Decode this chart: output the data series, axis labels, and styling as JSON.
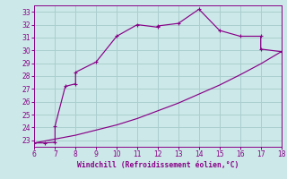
{
  "xlabel": "Windchill (Refroidissement éolien,°C)",
  "xlim": [
    6,
    18
  ],
  "ylim": [
    22.5,
    33.5
  ],
  "xticks": [
    6,
    7,
    8,
    9,
    10,
    11,
    12,
    13,
    14,
    15,
    16,
    17,
    18
  ],
  "yticks": [
    23,
    24,
    25,
    26,
    27,
    28,
    29,
    30,
    31,
    32,
    33
  ],
  "bg_color": "#cce8e8",
  "grid_color": "#aacece",
  "line_color": "#880088",
  "curve1_x": [
    6,
    6.5,
    7,
    7,
    7.5,
    8,
    8,
    9,
    10,
    11,
    12,
    12,
    13,
    14,
    15,
    16,
    17,
    17,
    18
  ],
  "curve1_y": [
    22.8,
    22.8,
    22.85,
    24.1,
    27.2,
    27.4,
    28.3,
    29.1,
    31.1,
    32.0,
    31.8,
    31.9,
    32.1,
    33.2,
    31.55,
    31.1,
    31.1,
    30.1,
    29.9
  ],
  "curve2_x": [
    6,
    7,
    8,
    9,
    10,
    11,
    12,
    13,
    14,
    15,
    16,
    17,
    18
  ],
  "curve2_y": [
    22.8,
    23.1,
    23.4,
    23.8,
    24.2,
    24.7,
    25.3,
    25.9,
    26.6,
    27.3,
    28.1,
    28.95,
    29.9
  ],
  "marker": "+"
}
